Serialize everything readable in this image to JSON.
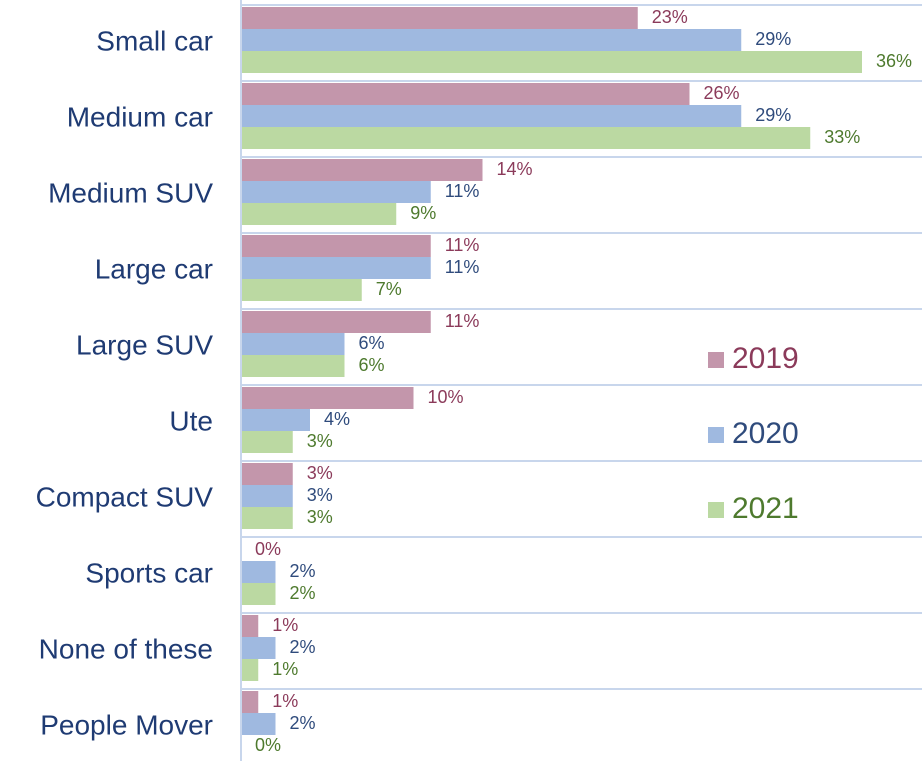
{
  "chart_data": {
    "type": "barh",
    "categories": [
      "Small car",
      "Medium car",
      "Medium SUV",
      "Large car",
      "Large SUV",
      "Ute",
      "Compact SUV",
      "Sports car",
      "None of these",
      "People Mover"
    ],
    "series": [
      {
        "name": "2019",
        "color": "#c396ab",
        "label_color": "#8b3a5a",
        "values": [
          23,
          26,
          14,
          11,
          11,
          10,
          3,
          0,
          1,
          1
        ],
        "value_labels": [
          "23%",
          "26%",
          "14%",
          "11%",
          "11%",
          "10%",
          "3%",
          "0%",
          "1%",
          "1%"
        ]
      },
      {
        "name": "2020",
        "color": "#9fb9e0",
        "label_color": "#2f4b7c",
        "values": [
          29,
          29,
          11,
          11,
          6,
          4,
          3,
          2,
          2,
          2
        ],
        "value_labels": [
          "29%",
          "29%",
          "11%",
          "11%",
          "6%",
          "4%",
          "3%",
          "2%",
          "2%",
          "2%"
        ]
      },
      {
        "name": "2021",
        "color": "#bbd9a2",
        "label_color": "#4e7a2e",
        "values": [
          36,
          33,
          9,
          7,
          6,
          3,
          3,
          2,
          1,
          0
        ],
        "value_labels": [
          "36%",
          "33%",
          "9%",
          "7%",
          "6%",
          "3%",
          "3%",
          "2%",
          "1%",
          "0%"
        ]
      }
    ],
    "legend": "right",
    "grid": true
  }
}
